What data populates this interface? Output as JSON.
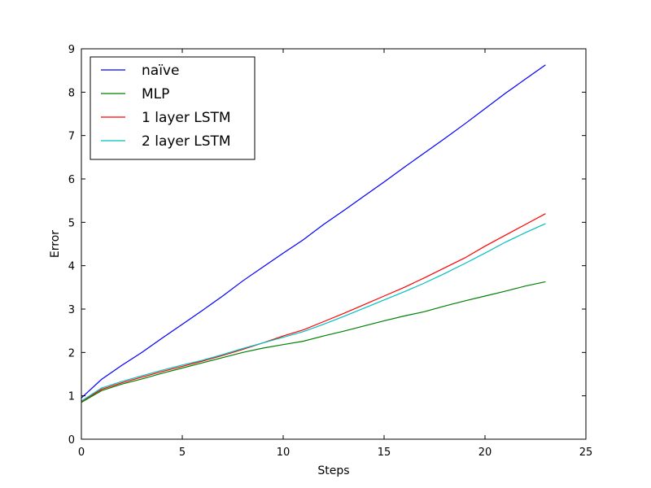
{
  "chart_data": {
    "type": "line",
    "title": "",
    "xlabel": "Steps",
    "ylabel": "Error",
    "xlim": [
      0,
      25
    ],
    "ylim": [
      0,
      9
    ],
    "x_ticks": [
      "0",
      "5",
      "10",
      "15",
      "20",
      "25"
    ],
    "y_ticks": [
      "0",
      "1",
      "2",
      "3",
      "4",
      "5",
      "6",
      "7",
      "8",
      "9"
    ],
    "grid": false,
    "legend_position": "top-left",
    "x": [
      0,
      1,
      2,
      3,
      4,
      5,
      6,
      7,
      8,
      9,
      10,
      11,
      12,
      13,
      14,
      15,
      16,
      17,
      18,
      19,
      20,
      21,
      22,
      23
    ],
    "series": [
      {
        "name": "naïve",
        "color": "#0000ff",
        "values": [
          0.95,
          1.38,
          1.7,
          2.0,
          2.33,
          2.65,
          2.97,
          3.3,
          3.65,
          3.97,
          4.29,
          4.6,
          4.95,
          5.27,
          5.6,
          5.93,
          6.27,
          6.6,
          6.93,
          7.27,
          7.62,
          7.97,
          8.3,
          8.63
        ]
      },
      {
        "name": "MLP",
        "color": "#008000",
        "values": [
          0.85,
          1.12,
          1.27,
          1.39,
          1.52,
          1.64,
          1.76,
          1.88,
          2.0,
          2.1,
          2.18,
          2.26,
          2.38,
          2.49,
          2.61,
          2.73,
          2.84,
          2.94,
          3.07,
          3.19,
          3.3,
          3.41,
          3.53,
          3.63
        ]
      },
      {
        "name": "1 layer LSTM",
        "color": "#ff0000",
        "values": [
          0.87,
          1.15,
          1.3,
          1.43,
          1.56,
          1.68,
          1.8,
          1.93,
          2.07,
          2.22,
          2.38,
          2.52,
          2.71,
          2.9,
          3.1,
          3.3,
          3.5,
          3.72,
          3.95,
          4.18,
          4.45,
          4.7,
          4.95,
          5.2
        ]
      },
      {
        "name": "2 layer LSTM",
        "color": "#00bfbf",
        "values": [
          0.88,
          1.18,
          1.33,
          1.46,
          1.59,
          1.71,
          1.82,
          1.95,
          2.09,
          2.22,
          2.35,
          2.48,
          2.65,
          2.83,
          3.02,
          3.21,
          3.4,
          3.6,
          3.82,
          4.05,
          4.29,
          4.54,
          4.76,
          4.97
        ]
      }
    ]
  }
}
